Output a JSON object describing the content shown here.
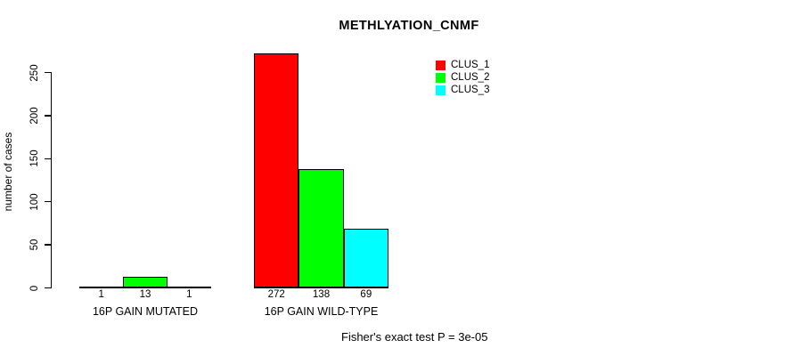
{
  "chart_data": {
    "type": "bar",
    "title": "METHLYATION_CNMF",
    "xlabel": "",
    "ylabel": "number of cases",
    "categories": [
      "16P GAIN MUTATED",
      "16P GAIN WILD-TYPE"
    ],
    "series": [
      {
        "name": "CLUS_1",
        "color": "#ff0000",
        "values": [
          1,
          272
        ]
      },
      {
        "name": "CLUS_2",
        "color": "#00ff00",
        "values": [
          13,
          138
        ]
      },
      {
        "name": "CLUS_3",
        "color": "#00ffff",
        "values": [
          1,
          69
        ]
      }
    ],
    "bar_value_labels": [
      [
        "1",
        "13",
        "1"
      ],
      [
        "272",
        "138",
        "69"
      ]
    ],
    "yticks": [
      0,
      50,
      100,
      150,
      200,
      250
    ],
    "ylim": [
      0,
      250
    ],
    "grid": false,
    "legend_position": "top-right",
    "annotation": "Fisher's exact test P = 3e-05",
    "colors": {
      "background": "#ffffff",
      "text": "#000000",
      "bar_border": "#000000",
      "axis": "#000000"
    }
  }
}
